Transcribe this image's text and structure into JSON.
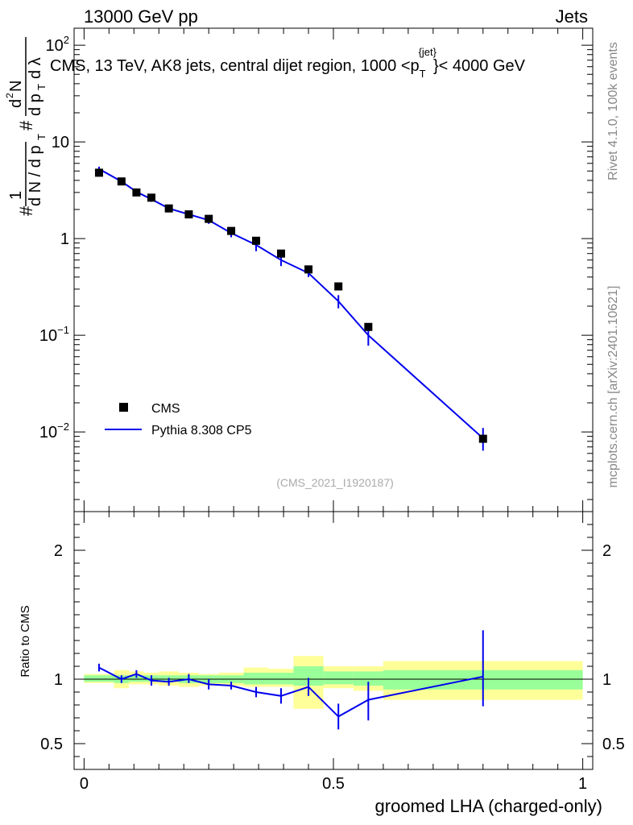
{
  "header": {
    "left": "13000 GeV pp",
    "right": "Jets"
  },
  "side": {
    "rivet": "Rivet 4.1.0,  100k events",
    "mcplots": "mcplots.cern.ch [arXiv:2401.10621]"
  },
  "plot_title": "CMS, 13 TeV, AK8 jets, central dijet region, 1000 < p_T^{jet} < 4000 GeV",
  "analysis_id": "(CMS_2021_I1920187)",
  "colors": {
    "data": "#000000",
    "mc": "#0000ee",
    "band_stat": "#99ff99",
    "band_total": "#ffff99"
  },
  "chart_data": [
    {
      "type": "scatter",
      "name": "main",
      "ylabel": "1/dN/dp_T # d^2N/dp_T dλ",
      "yscale": "log",
      "xlim": [
        0,
        1
      ],
      "ylim": [
        0.0015,
        150
      ],
      "yticks": [
        {
          "value": 0.01,
          "base": "10",
          "exp": "−2"
        },
        {
          "value": 0.1,
          "base": "10",
          "exp": "−1"
        },
        {
          "value": 1,
          "base": "1",
          "exp": ""
        },
        {
          "value": 10,
          "base": "10",
          "exp": ""
        },
        {
          "value": 100,
          "base": "10",
          "exp": "2"
        }
      ],
      "legend": [
        {
          "label": "CMS"
        },
        {
          "label": "Pythia 8.308 CP5"
        }
      ],
      "series": [
        {
          "name": "CMS",
          "x": [
            0.03,
            0.075,
            0.105,
            0.135,
            0.17,
            0.21,
            0.25,
            0.295,
            0.345,
            0.395,
            0.45,
            0.51,
            0.57,
            0.8
          ],
          "values": [
            4.8,
            3.9,
            3.0,
            2.65,
            2.05,
            1.78,
            1.6,
            1.2,
            0.95,
            0.7,
            0.48,
            0.32,
            0.122,
            0.0085
          ]
        },
        {
          "name": "Pythia 8.308 CP5",
          "x": [
            0.03,
            0.075,
            0.105,
            0.135,
            0.17,
            0.21,
            0.25,
            0.295,
            0.345,
            0.395,
            0.45,
            0.51,
            0.57,
            0.8
          ],
          "values": [
            5.25,
            3.9,
            3.05,
            2.55,
            2.05,
            1.78,
            1.55,
            1.14,
            0.86,
            0.6,
            0.44,
            0.225,
            0.1,
            0.0086
          ],
          "err_low": [
            4.95,
            3.7,
            2.85,
            2.4,
            1.93,
            1.67,
            1.42,
            1.03,
            0.74,
            0.52,
            0.4,
            0.19,
            0.078,
            0.0064
          ],
          "err_high": [
            5.55,
            4.1,
            3.25,
            2.7,
            2.17,
            1.89,
            1.68,
            1.25,
            0.98,
            0.68,
            0.48,
            0.26,
            0.122,
            0.011
          ]
        }
      ]
    },
    {
      "type": "line",
      "name": "ratio",
      "xlabel": "groomed LHA (charged-only)",
      "ylabel": "Ratio to CMS",
      "xlim": [
        -0.02,
        1.02
      ],
      "ylim": [
        0.3,
        2.3
      ],
      "xticks": [
        {
          "value": 0,
          "label": "0"
        },
        {
          "value": 0.5,
          "label": "0.5"
        },
        {
          "value": 1,
          "label": "1"
        }
      ],
      "yticks": [
        {
          "value": 0.5,
          "label": "0.5"
        },
        {
          "value": 1,
          "label": "1"
        },
        {
          "value": 2,
          "label": "2"
        }
      ],
      "bands": [
        {
          "x0": 0.0,
          "x1": 0.06,
          "total": [
            0.97,
            1.04
          ],
          "stat": [
            0.98,
            1.03
          ]
        },
        {
          "x0": 0.06,
          "x1": 0.09,
          "total": [
            0.93,
            1.07
          ],
          "stat": [
            0.97,
            1.03
          ]
        },
        {
          "x0": 0.09,
          "x1": 0.12,
          "total": [
            0.96,
            1.06
          ],
          "stat": [
            0.98,
            1.03
          ]
        },
        {
          "x0": 0.12,
          "x1": 0.15,
          "total": [
            0.96,
            1.05
          ],
          "stat": [
            0.98,
            1.03
          ]
        },
        {
          "x0": 0.15,
          "x1": 0.19,
          "total": [
            0.95,
            1.06
          ],
          "stat": [
            0.98,
            1.03
          ]
        },
        {
          "x0": 0.19,
          "x1": 0.23,
          "total": [
            0.94,
            1.05
          ],
          "stat": [
            0.97,
            1.03
          ]
        },
        {
          "x0": 0.23,
          "x1": 0.27,
          "total": [
            0.95,
            1.04
          ],
          "stat": [
            0.97,
            1.03
          ]
        },
        {
          "x0": 0.27,
          "x1": 0.32,
          "total": [
            0.95,
            1.05
          ],
          "stat": [
            0.97,
            1.03
          ]
        },
        {
          "x0": 0.32,
          "x1": 0.37,
          "total": [
            0.94,
            1.09
          ],
          "stat": [
            0.96,
            1.05
          ]
        },
        {
          "x0": 0.37,
          "x1": 0.42,
          "total": [
            0.94,
            1.08
          ],
          "stat": [
            0.96,
            1.05
          ]
        },
        {
          "x0": 0.42,
          "x1": 0.48,
          "total": [
            0.77,
            1.18
          ],
          "stat": [
            0.95,
            1.1
          ]
        },
        {
          "x0": 0.48,
          "x1": 0.54,
          "total": [
            0.93,
            1.1
          ],
          "stat": [
            0.96,
            1.06
          ]
        },
        {
          "x0": 0.54,
          "x1": 0.6,
          "total": [
            0.91,
            1.1
          ],
          "stat": [
            0.95,
            1.06
          ]
        },
        {
          "x0": 0.6,
          "x1": 1.0,
          "total": [
            0.84,
            1.14
          ],
          "stat": [
            0.92,
            1.07
          ]
        }
      ],
      "series": [
        {
          "name": "Pythia 8.308 CP5 / CMS",
          "x": [
            0.03,
            0.075,
            0.105,
            0.135,
            0.17,
            0.21,
            0.25,
            0.295,
            0.345,
            0.395,
            0.45,
            0.51,
            0.57,
            0.8
          ],
          "values": [
            1.09,
            1.0,
            1.04,
            0.99,
            0.98,
            1.0,
            0.96,
            0.95,
            0.9,
            0.87,
            0.94,
            0.71,
            0.84,
            1.02
          ],
          "err_low": [
            1.06,
            0.97,
            1.01,
            0.95,
            0.95,
            0.97,
            0.92,
            0.92,
            0.86,
            0.81,
            0.87,
            0.61,
            0.68,
            0.79
          ],
          "err_high": [
            1.12,
            1.03,
            1.07,
            1.03,
            1.01,
            1.04,
            1.0,
            0.98,
            0.94,
            0.93,
            1.01,
            0.81,
            0.98,
            1.38
          ]
        }
      ]
    }
  ]
}
